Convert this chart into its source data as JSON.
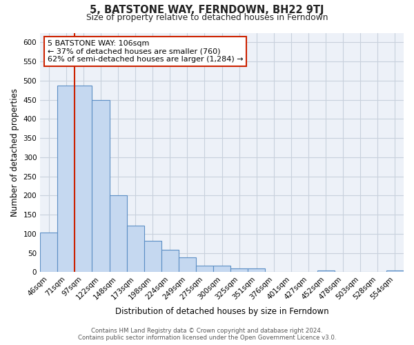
{
  "title": "5, BATSTONE WAY, FERNDOWN, BH22 9TJ",
  "subtitle": "Size of property relative to detached houses in Ferndown",
  "xlabel": "Distribution of detached houses by size in Ferndown",
  "ylabel": "Number of detached properties",
  "footer_line1": "Contains HM Land Registry data © Crown copyright and database right 2024.",
  "footer_line2": "Contains public sector information licensed under the Open Government Licence v3.0.",
  "bar_labels": [
    "46sqm",
    "71sqm",
    "97sqm",
    "122sqm",
    "148sqm",
    "173sqm",
    "198sqm",
    "224sqm",
    "249sqm",
    "275sqm",
    "300sqm",
    "325sqm",
    "351sqm",
    "376sqm",
    "401sqm",
    "427sqm",
    "452sqm",
    "478sqm",
    "503sqm",
    "528sqm",
    "554sqm"
  ],
  "bar_values": [
    103,
    487,
    487,
    450,
    200,
    122,
    82,
    58,
    39,
    17,
    17,
    10,
    10,
    0,
    0,
    0,
    5,
    0,
    0,
    0,
    5
  ],
  "bar_color": "#c5d8f0",
  "bar_edge_color": "#5b8ec4",
  "annotation_box_text": "5 BATSTONE WAY: 106sqm",
  "annotation_line1": "← 37% of detached houses are smaller (760)",
  "annotation_line2": "62% of semi-detached houses are larger (1,284) →",
  "vline_color": "#cc2200",
  "vline_x_index": 2.0,
  "bg_color": "#ffffff",
  "plot_bg_color": "#edf1f8",
  "ylim": [
    0,
    625
  ],
  "yticks": [
    0,
    50,
    100,
    150,
    200,
    250,
    300,
    350,
    400,
    450,
    500,
    550,
    600
  ],
  "annotation_box_color": "white",
  "annotation_box_edge_color": "#cc2200",
  "grid_color": "#c8d0dc"
}
